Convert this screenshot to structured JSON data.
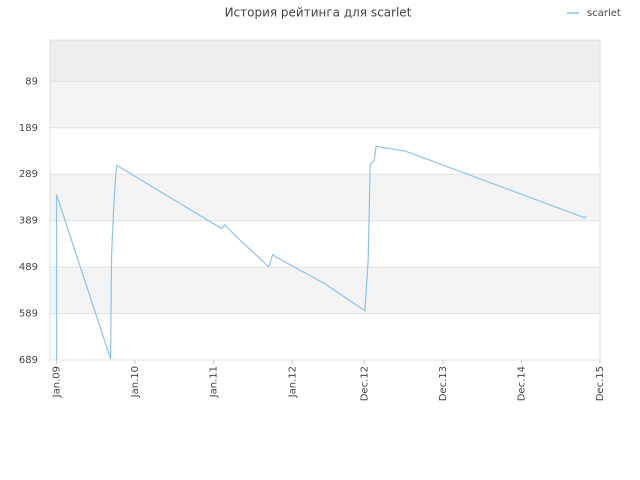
{
  "chart_data": {
    "type": "line",
    "title": "История рейтинга для scarlet",
    "x": [
      0,
      0,
      8.26,
      8.4,
      8.7,
      9.0,
      9.2,
      25.2,
      25.7,
      27.5,
      32.4,
      32.6,
      33.0,
      33.5,
      41.0,
      47.1,
      47.6,
      47.9,
      48.5,
      48.8,
      52.8,
      53.4,
      80.7,
      80.9
    ],
    "series": [
      {
        "name": "scarlet",
        "color": "#8cc4ee",
        "values": [
          689,
          333,
          687,
          465,
          368,
          298,
          270,
          406,
          398,
          424,
          488,
          480,
          462,
          467,
          525,
          583,
          471,
          268,
          260,
          229,
          238,
          240,
          383,
          378
        ]
      }
    ],
    "xlim": [
      -1,
      83
    ],
    "xticks": [
      {
        "value": 0,
        "label": "Jan.09"
      },
      {
        "value": 12,
        "label": "Jan.10"
      },
      {
        "value": 24,
        "label": "Jan.11"
      },
      {
        "value": 36,
        "label": "Jan.12"
      },
      {
        "value": 47,
        "label": "Dec.12"
      },
      {
        "value": 59,
        "label": "Dec.13"
      },
      {
        "value": 71,
        "label": "Dec.14"
      },
      {
        "value": 83,
        "label": "Dec.15"
      }
    ],
    "ylim": [
      689,
      0
    ],
    "yticks": [
      89,
      189,
      289,
      389,
      489,
      589,
      689
    ],
    "legend": "top-right",
    "grid": true
  }
}
